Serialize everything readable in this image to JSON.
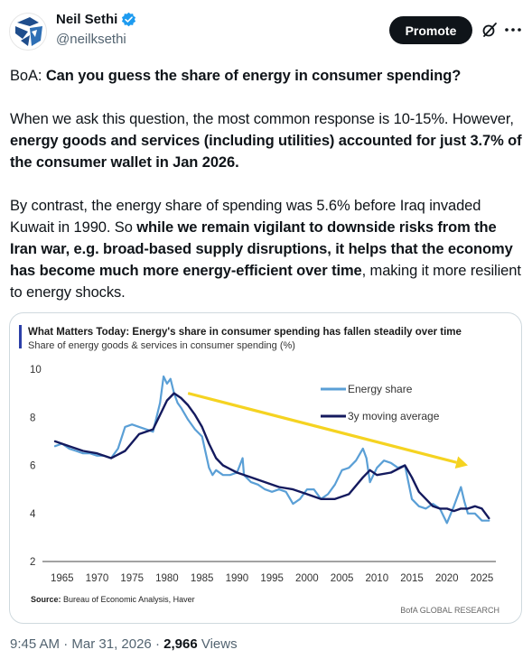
{
  "author": {
    "display_name": "Neil Sethi",
    "handle": "@neilksethi",
    "verified": true
  },
  "actions": {
    "promote_label": "Promote",
    "grok_icon": "grok-icon",
    "more_icon": "more-icon"
  },
  "tweet": {
    "p1": {
      "prefix": "BoA: ",
      "bold": "Can you guess the share of energy in consumer spending?"
    },
    "p2": {
      "text1": "When we ask this question, the most common response is 10-15%. However, ",
      "bold1": "energy goods and services (including utilities) accounted for just 3.7% of the consumer wallet in Jan 2026."
    },
    "p3": {
      "text1": "By contrast, the energy share of spending was 5.6% before Iraq invaded Kuwait in 1990. So ",
      "bold1": "while we remain vigilant to downside risks from the Iran war, e.g. broad-based supply disruptions, it helps that the economy has become much more energy-efficient over time",
      "text2": ", making it more resilient to energy shocks."
    }
  },
  "chart_data": {
    "type": "line",
    "title": "What Matters Today: Energy's share in consumer spending has fallen steadily over time",
    "subtitle": "Share of energy goods & services in consumer spending (%)",
    "xlabel": "",
    "ylabel": "",
    "x_ticks": [
      "1965",
      "1970",
      "1975",
      "1980",
      "1985",
      "1990",
      "1995",
      "2000",
      "2005",
      "2010",
      "2015",
      "2020",
      "2025"
    ],
    "y_ticks": [
      "2",
      "4",
      "6",
      "8",
      "10"
    ],
    "xlim": [
      1964,
      2027
    ],
    "ylim": [
      2,
      10
    ],
    "grid": false,
    "legend": "top-right",
    "source": "Source: Bureau of Economic Analysis, Haver",
    "credit": "BofA GLOBAL RESEARCH",
    "colors": {
      "accent_bar": "#2b3fa8",
      "energy_share": "#5a9fd6",
      "moving_average": "#141a5e",
      "trend_arrow": "#f5d321"
    },
    "trend_arrow": {
      "from": [
        1983,
        9.0
      ],
      "to": [
        2023,
        6.0
      ]
    },
    "series": [
      {
        "name": "Energy share",
        "x": [
          1964,
          1965,
          1966,
          1967,
          1968,
          1969,
          1970,
          1971,
          1972,
          1973,
          1974,
          1975,
          1976,
          1977,
          1978,
          1979,
          1979.5,
          1980,
          1980.5,
          1981,
          1981.5,
          1982,
          1983,
          1984,
          1985,
          1986,
          1986.5,
          1987,
          1988,
          1989,
          1990,
          1990.8,
          1991,
          1992,
          1993,
          1994,
          1995,
          1996,
          1997,
          1998,
          1999,
          2000,
          2001,
          2002,
          2003,
          2004,
          2005,
          2006,
          2007,
          2008,
          2008.5,
          2009,
          2010,
          2011,
          2012,
          2013,
          2014,
          2015,
          2016,
          2017,
          2018,
          2019,
          2020,
          2021,
          2022,
          2022.5,
          2023,
          2024,
          2025,
          2026
        ],
        "values": [
          6.8,
          6.9,
          6.7,
          6.6,
          6.5,
          6.5,
          6.4,
          6.4,
          6.3,
          6.7,
          7.6,
          7.7,
          7.6,
          7.5,
          7.4,
          8.6,
          9.7,
          9.4,
          9.6,
          9.0,
          8.6,
          8.4,
          7.9,
          7.5,
          7.2,
          5.9,
          5.6,
          5.8,
          5.6,
          5.6,
          5.7,
          6.3,
          5.6,
          5.3,
          5.2,
          5.0,
          4.9,
          5.0,
          4.9,
          4.4,
          4.6,
          5.0,
          5.0,
          4.6,
          4.8,
          5.2,
          5.8,
          5.9,
          6.2,
          6.7,
          6.3,
          5.3,
          5.9,
          6.2,
          6.1,
          5.9,
          6.0,
          4.6,
          4.3,
          4.2,
          4.4,
          4.2,
          3.6,
          4.3,
          5.1,
          4.5,
          4.0,
          4.0,
          3.7,
          3.7
        ]
      },
      {
        "name": "3y moving average",
        "x": [
          1964,
          1966,
          1968,
          1970,
          1972,
          1974,
          1976,
          1978,
          1979,
          1980,
          1981,
          1982,
          1983,
          1984,
          1985,
          1986,
          1987,
          1988,
          1990,
          1992,
          1994,
          1996,
          1998,
          2000,
          2002,
          2004,
          2006,
          2008,
          2009,
          2010,
          2012,
          2014,
          2015,
          2016,
          2018,
          2019,
          2020,
          2021,
          2022,
          2023,
          2024,
          2025,
          2026
        ],
        "values": [
          7.0,
          6.8,
          6.6,
          6.5,
          6.3,
          6.6,
          7.3,
          7.5,
          8.1,
          8.7,
          9.0,
          8.8,
          8.5,
          8.1,
          7.6,
          6.9,
          6.3,
          6.0,
          5.7,
          5.5,
          5.3,
          5.1,
          5.0,
          4.8,
          4.6,
          4.6,
          4.8,
          5.5,
          5.8,
          5.6,
          5.7,
          6.0,
          5.5,
          4.9,
          4.3,
          4.2,
          4.2,
          4.1,
          4.2,
          4.2,
          4.3,
          4.2,
          3.8
        ]
      }
    ]
  },
  "meta": {
    "time": "9:45 AM",
    "separator1": " · ",
    "date": "Mar 31, 2026",
    "separator2": " · ",
    "views_count": "2,966",
    "views_label": " Views"
  }
}
